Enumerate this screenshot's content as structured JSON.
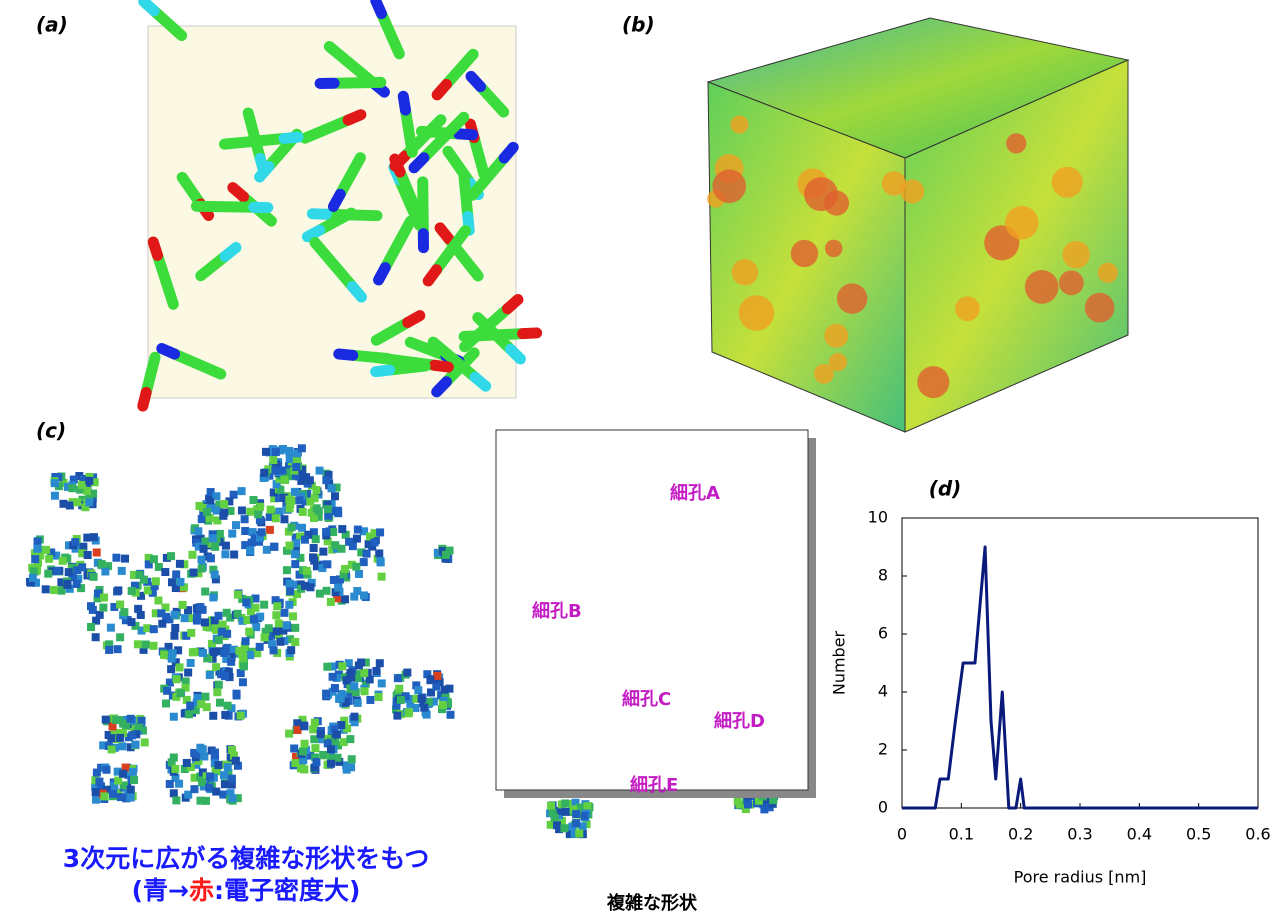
{
  "panels": {
    "a": "(a)",
    "b": "(b)",
    "c": "(c)"
  },
  "pores": [
    "細孔A",
    "細孔B",
    "細孔C",
    "細孔D",
    "細孔E"
  ],
  "caption_c": {
    "line1": "3次元に広がる複雑な形状をもつ",
    "line2_start": "(青→",
    "line2_red": "赤",
    "line2_end": ":電子密度大)"
  },
  "caption_box": "複雑な形状",
  "chart_data": {
    "type": "line",
    "title": "(d)",
    "xlabel": "Pore radius [nm]",
    "ylabel": "Number",
    "x": [
      0,
      0.056,
      0.064,
      0.078,
      0.09,
      0.103,
      0.123,
      0.14,
      0.15,
      0.158,
      0.169,
      0.18,
      0.192,
      0.2,
      0.206,
      0.6
    ],
    "series": [
      {
        "name": "Number",
        "color": "#0a1a7a",
        "values": [
          0,
          0,
          1,
          1,
          3,
          5,
          5,
          9,
          3,
          1,
          4,
          0,
          0,
          1,
          0,
          0
        ]
      }
    ],
    "xlim": [
      0,
      0.6
    ],
    "ylim": [
      0,
      10
    ],
    "xticks": [
      0,
      0.1,
      0.2,
      0.3,
      0.4,
      0.5,
      0.6
    ],
    "yticks": [
      0,
      2,
      4,
      6,
      8,
      10
    ]
  }
}
